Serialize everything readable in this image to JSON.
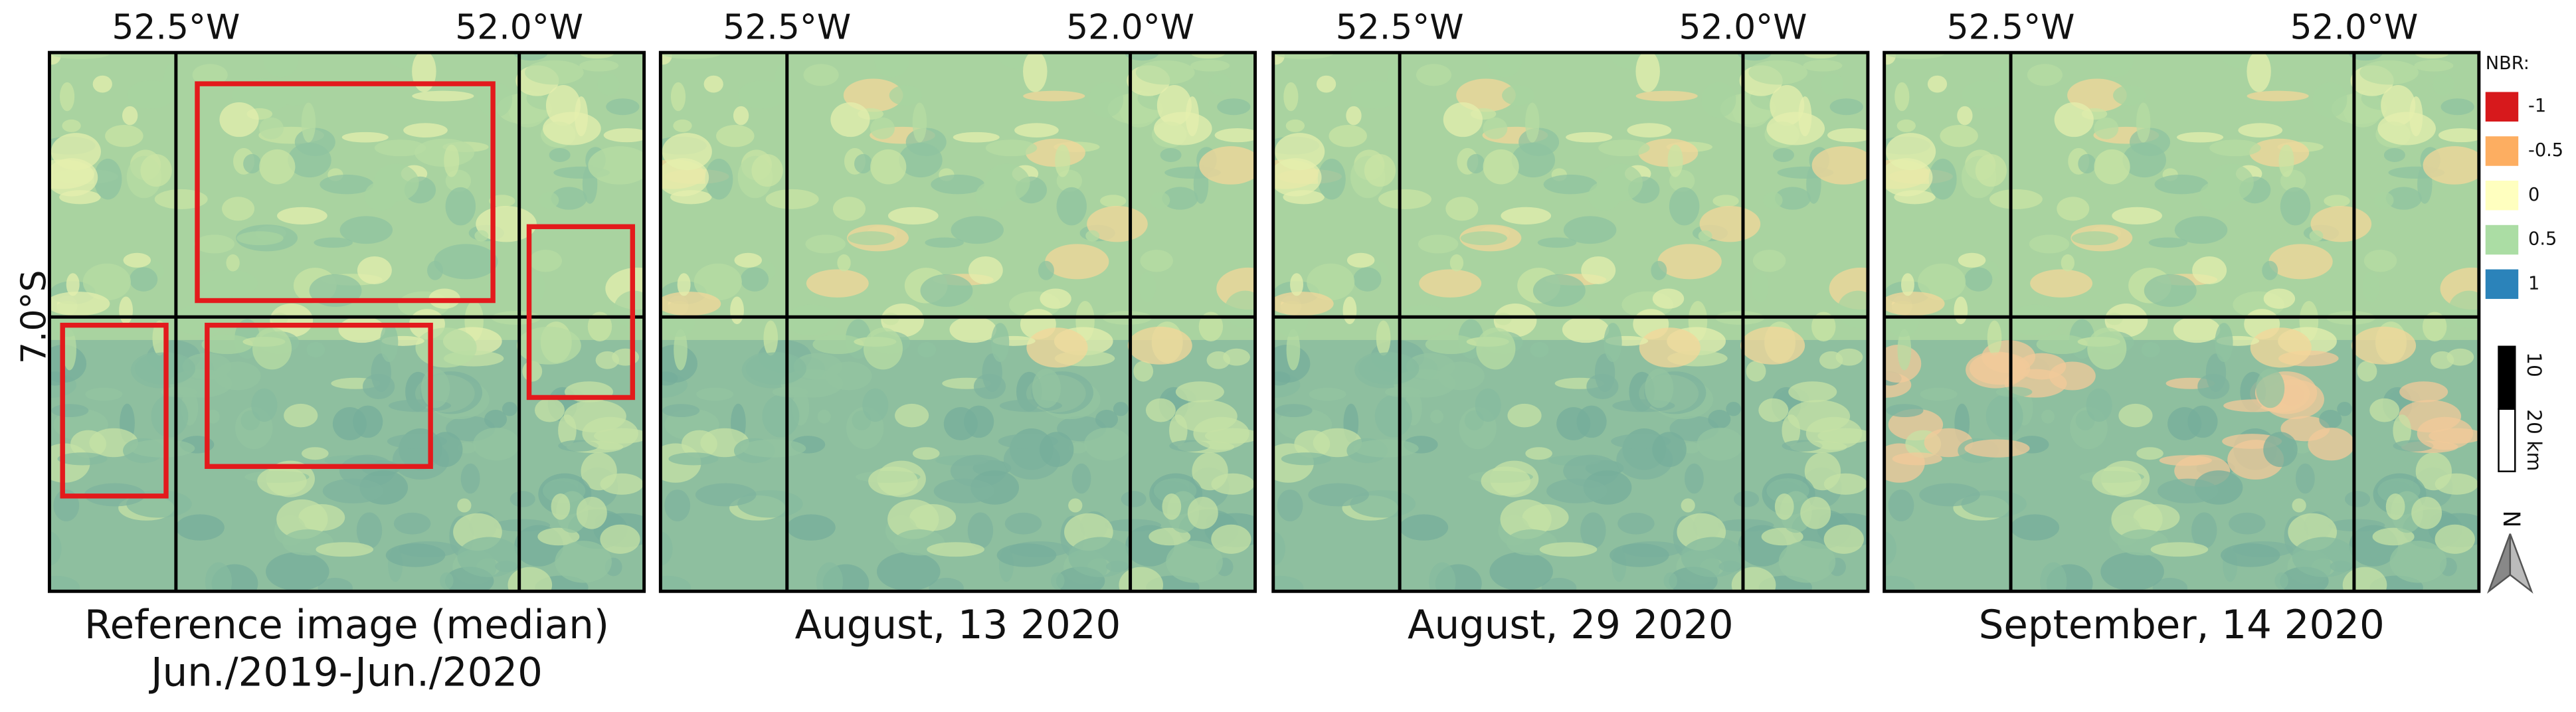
{
  "panels": [
    {
      "title": [
        "Reference image (median)",
        "Jun./2019-Jun./2020"
      ]
    },
    {
      "title": [
        "August, 13 2020"
      ]
    },
    {
      "title": [
        "August, 29 2020"
      ]
    },
    {
      "title": [
        "September, 14 2020"
      ]
    }
  ],
  "longitude_labels": [
    "52.5°W",
    "52.0°W"
  ],
  "latitude_label": "7.0°S",
  "legend": {
    "title": "NBR:",
    "items": [
      {
        "label": "-1",
        "color": "#d7191c"
      },
      {
        "label": "-0.5",
        "color": "#fdae61"
      },
      {
        "label": "0",
        "color": "#ffffbf"
      },
      {
        "label": "0.5",
        "color": "#abdda4"
      },
      {
        "label": "1",
        "color": "#2b83ba"
      }
    ]
  },
  "scale_bar": {
    "labels": [
      "10",
      "20 km"
    ]
  },
  "north_arrow": "N"
}
